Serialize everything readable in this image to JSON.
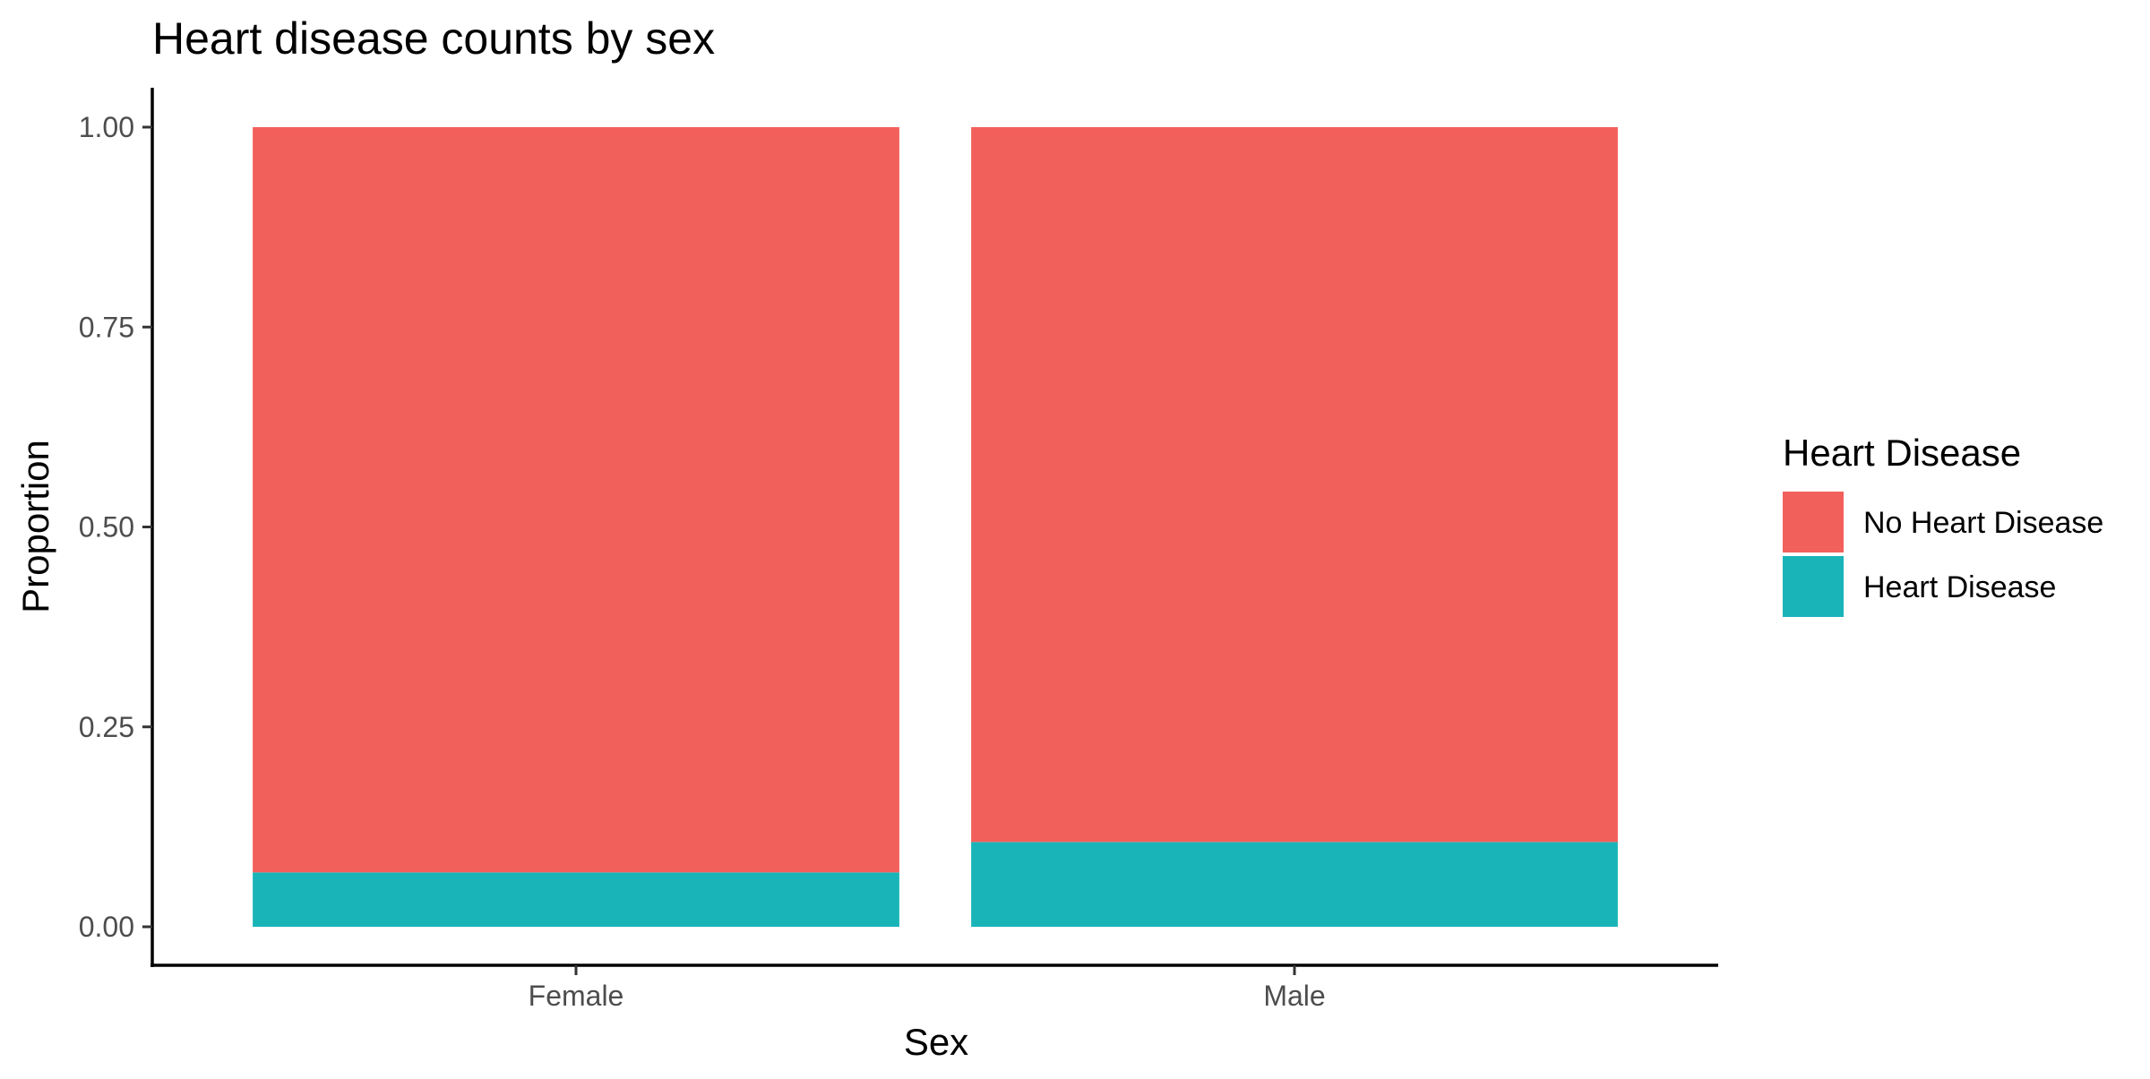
{
  "chart_data": {
    "type": "bar",
    "stacked": true,
    "title": "Heart disease counts by sex",
    "xlabel": "Sex",
    "ylabel": "Proportion",
    "categories": [
      "Female",
      "Male"
    ],
    "ylim": [
      0,
      1
    ],
    "yticks": [
      0,
      0.25,
      0.5,
      0.75,
      1
    ],
    "ytick_labels": [
      "0.00",
      "0.25",
      "0.50",
      "0.75",
      "1.00"
    ],
    "series": [
      {
        "name": "Heart Disease",
        "color": "#19B4B8",
        "values": [
          0.068,
          0.106
        ]
      },
      {
        "name": "No Heart Disease",
        "color": "#F2605C",
        "values": [
          0.932,
          0.894
        ]
      }
    ],
    "grid": false,
    "legend": {
      "title": "Heart Disease",
      "position": "right",
      "entries": [
        {
          "label": "No Heart Disease",
          "color": "#F2605C"
        },
        {
          "label": "Heart Disease",
          "color": "#19B4B8"
        }
      ]
    }
  }
}
